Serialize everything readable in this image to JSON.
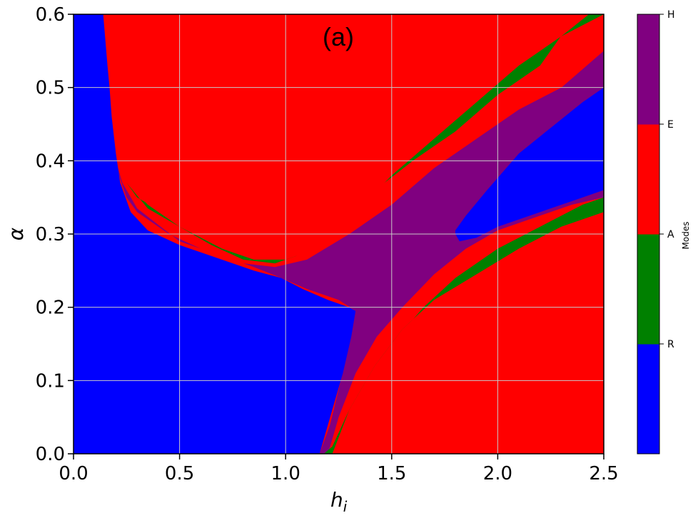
{
  "chart_data": {
    "type": "heatmap",
    "title": "(a)",
    "xlabel": "h_i",
    "ylabel": "α",
    "xlim": [
      0.0,
      2.5
    ],
    "ylim": [
      0.0,
      0.6
    ],
    "xticks": [
      "0.0",
      "0.5",
      "1.0",
      "1.5",
      "2.0",
      "2.5"
    ],
    "yticks": [
      "0.0",
      "0.1",
      "0.2",
      "0.3",
      "0.4",
      "0.5",
      "0.6"
    ],
    "grid": true,
    "colorbar": {
      "title": "Modes",
      "categories": [
        "R",
        "A",
        "E",
        "H"
      ],
      "colors": [
        "#0000ff",
        "#008000",
        "#ff0000",
        "#800080"
      ]
    },
    "regions": [
      {
        "mode": "R",
        "color": "#0000ff",
        "description_points": [
          [
            0.0,
            0.0
          ],
          [
            1.16,
            0.0
          ],
          [
            1.33,
            0.2
          ],
          [
            0.9,
            0.25
          ],
          [
            0.2,
            0.4
          ],
          [
            0.14,
            0.6
          ],
          [
            0.0,
            0.6
          ]
        ]
      },
      {
        "mode": "R",
        "color": "#0000ff",
        "description_points": [
          [
            1.8,
            0.3
          ],
          [
            2.5,
            0.36
          ],
          [
            2.5,
            0.5
          ],
          [
            2.2,
            0.45
          ],
          [
            1.85,
            0.32
          ]
        ]
      },
      {
        "mode": "E",
        "color": "#ff0000",
        "description_points": [
          [
            0.14,
            0.6
          ],
          [
            2.43,
            0.6
          ],
          [
            1.0,
            0.27
          ],
          [
            0.85,
            0.27
          ],
          [
            0.3,
            0.36
          ],
          [
            0.2,
            0.43
          ]
        ]
      },
      {
        "mode": "E",
        "color": "#ff0000",
        "description_points": [
          [
            1.2,
            0.0
          ],
          [
            2.5,
            0.0
          ],
          [
            2.5,
            0.33
          ],
          [
            1.5,
            0.13
          ]
        ]
      },
      {
        "mode": "A",
        "color": "#008000",
        "description_points": [
          [
            0.2,
            0.42
          ],
          [
            1.0,
            0.26
          ],
          [
            2.5,
            0.6
          ]
        ]
      },
      {
        "mode": "A",
        "color": "#008000",
        "description_points": [
          [
            1.18,
            0.0
          ],
          [
            1.5,
            0.17
          ],
          [
            2.5,
            0.35
          ]
        ]
      },
      {
        "mode": "H",
        "color": "#800080",
        "description_points": [
          [
            1.16,
            0.0
          ],
          [
            1.33,
            0.2
          ],
          [
            1.0,
            0.25
          ],
          [
            2.5,
            0.55
          ],
          [
            2.5,
            0.36
          ],
          [
            1.8,
            0.3
          ],
          [
            1.5,
            0.2
          ]
        ]
      }
    ]
  }
}
